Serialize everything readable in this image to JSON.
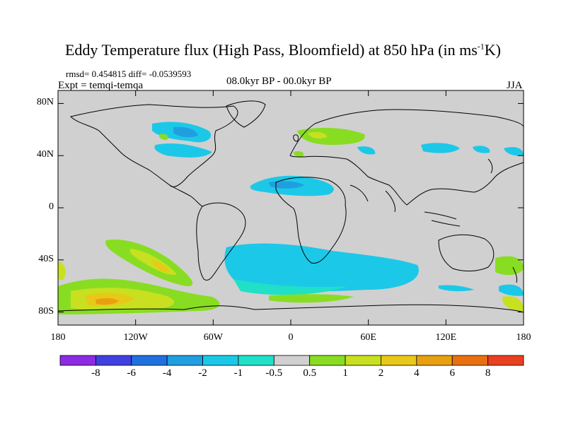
{
  "title": {
    "main": "Eddy Temperature flux (High Pass, Bloomfield) at 850 hPa (in ms",
    "sup": "-1",
    "tail": "K)"
  },
  "stats": "rmsd= 0.454815 diff= -0.0539593",
  "experiment": "Expt = temqi-temqa",
  "period": "08.0kyr BP - 00.0kyr BP",
  "season": "JJA",
  "map": {
    "lon_range": [
      -180,
      180
    ],
    "lat_range": [
      -90,
      90
    ],
    "background": "#d0d0d0",
    "y_ticks": [
      {
        "lat": 80,
        "label": "80N"
      },
      {
        "lat": 40,
        "label": "40N"
      },
      {
        "lat": 0,
        "label": "0"
      },
      {
        "lat": -40,
        "label": "40S"
      },
      {
        "lat": -80,
        "label": "80S"
      }
    ],
    "x_ticks": [
      {
        "lon": -180,
        "label": "180"
      },
      {
        "lon": -120,
        "label": "120W"
      },
      {
        "lon": -60,
        "label": "60W"
      },
      {
        "lon": 0,
        "label": "0"
      },
      {
        "lon": 60,
        "label": "60E"
      },
      {
        "lon": 120,
        "label": "120E"
      },
      {
        "lon": 180,
        "label": "180"
      }
    ]
  },
  "colorbar": {
    "colors": [
      "#8b2be2",
      "#4040e0",
      "#2070e0",
      "#1f9fe0",
      "#1cc8e8",
      "#20e0c8",
      "#d0d0d0",
      "#88dd22",
      "#c8e020",
      "#e8c818",
      "#e8a010",
      "#e87010",
      "#e84020"
    ],
    "labels": [
      "-8",
      "-6",
      "-4",
      "-2",
      "-1",
      "-0.5",
      "0.5",
      "1",
      "2",
      "4",
      "6",
      "8"
    ]
  },
  "colors": {
    "cyan": "#1cc8e8",
    "turquoise": "#20e0c8",
    "blue": "#1f9fe0",
    "green": "#88dd22",
    "yellow_green": "#c8e020",
    "yellow": "#e8c818",
    "orange": "#e8a010"
  }
}
